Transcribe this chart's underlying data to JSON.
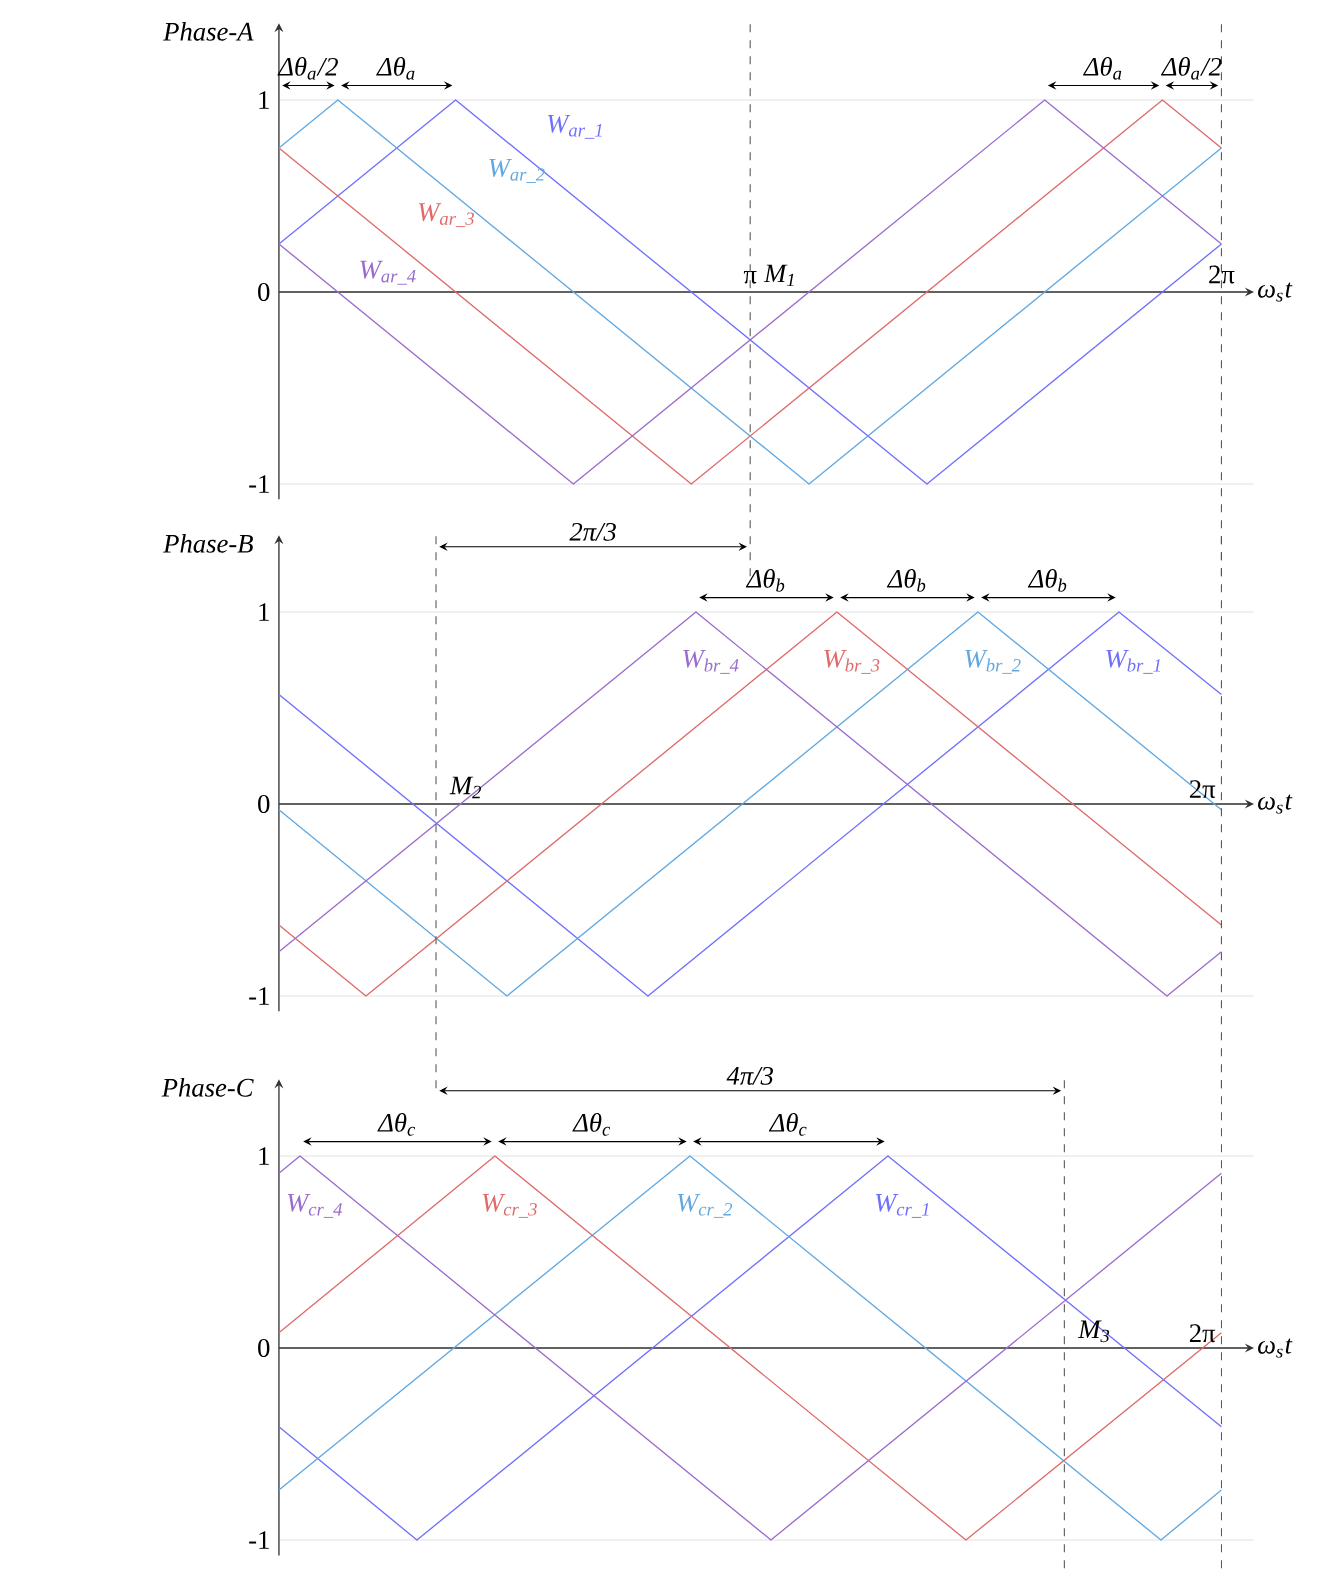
{
  "chart_data": [
    {
      "type": "line",
      "title": "Phase-A",
      "xlabel": "ω$_{s}$t",
      "xlim": [
        0,
        6.5
      ],
      "ylim": [
        -1.08,
        1.4
      ],
      "xticks": [
        {
          "value": 3.1416,
          "label": "π"
        },
        {
          "value": 6.2832,
          "label": "2π"
        }
      ],
      "yticks": [
        -1,
        0,
        1
      ],
      "grid": "y",
      "line_style": "solid",
      "series": [
        {
          "name": "W$_{ar_1}$",
          "color": "#6f6fff",
          "x": [
            0,
            1.178,
            4.32,
            6.283
          ],
          "values": [
            0.25,
            1,
            -1,
            0.25
          ]
        },
        {
          "name": "W$_{ar_2}$",
          "color": "#62a8e0",
          "x": [
            0,
            0.393,
            3.534,
            6.283
          ],
          "values": [
            0.75,
            1,
            -1,
            0.75
          ]
        },
        {
          "name": "W$_{ar_3}$",
          "color": "#e06a6a",
          "x": [
            0,
            2.749,
            5.89,
            6.283
          ],
          "values": [
            0.75,
            -1,
            1,
            0.75
          ]
        },
        {
          "name": "W$_{ar_4}$",
          "color": "#9a6ccc",
          "x": [
            0,
            1.963,
            5.105,
            6.283
          ],
          "values": [
            0.25,
            -1,
            1,
            0.25
          ]
        }
      ],
      "ref_lines": [
        {
          "axis": "x",
          "value": 3.1416,
          "label": "M$_{1}$",
          "line_style": "dashed"
        },
        {
          "axis": "x",
          "value": 6.2832,
          "line_style": "dashed"
        }
      ],
      "annotations": [
        "Δθ$_{a}$/2",
        "Δθ$_{a}$",
        "Δθ$_{a}$",
        "Δθ$_{a}$/2"
      ]
    },
    {
      "type": "line",
      "title": "Phase-B",
      "xlabel": "ω$_{s}$t",
      "xlim": [
        0,
        6.5
      ],
      "ylim": [
        -1.08,
        1.4
      ],
      "tick_labels": "y",
      "yticks": [
        -1,
        0,
        1
      ],
      "grid": "y",
      "line_style": "solid",
      "series": [
        {
          "name": "W$_{br_1}$",
          "color": "#6f6fff",
          "x": [
            0,
            2.46,
            5.6,
            6.283
          ],
          "values": [
            0.57,
            -1,
            1,
            0.57
          ]
        },
        {
          "name": "W$_{br_2}$",
          "color": "#62a8e0",
          "x": [
            0,
            1.52,
            4.66,
            6.283
          ],
          "values": [
            -0.03,
            -1,
            1,
            -0.03
          ]
        },
        {
          "name": "W$_{br_3}$",
          "color": "#e06a6a",
          "x": [
            0,
            0.58,
            3.72,
            6.283
          ],
          "values": [
            -0.63,
            -1,
            1,
            -0.63
          ]
        },
        {
          "name": "W$_{br_4}$",
          "color": "#9a6ccc",
          "x": [
            0,
            2.78,
            5.92,
            6.283
          ],
          "values": [
            -0.77,
            1,
            -1,
            -0.77
          ]
        }
      ],
      "ref_lines": [
        {
          "axis": "x",
          "value": 1.0472,
          "label": "M$_{2}$",
          "line_style": "dashed"
        },
        {
          "axis": "x",
          "value": 6.2832,
          "line_style": "dashed"
        }
      ],
      "annotations": [
        "2π/3",
        "Δθ$_{b}$",
        "Δθ$_{b}$",
        "Δθ$_{b}$",
        "2π"
      ]
    },
    {
      "type": "line",
      "title": "Phase-C",
      "xlabel": "ω$_{s}$t",
      "xlim": [
        0,
        6.5
      ],
      "ylim": [
        -1.08,
        1.4
      ],
      "tick_labels": "y",
      "yticks": [
        -1,
        0,
        1
      ],
      "grid": "y",
      "line_style": "solid",
      "series": [
        {
          "name": "W$_{cr_1}$",
          "color": "#6f6fff",
          "x": [
            0,
            0.92,
            4.06,
            6.283
          ],
          "values": [
            -0.41,
            -1,
            1,
            -0.41
          ]
        },
        {
          "name": "W$_{cr_2}$",
          "color": "#62a8e0",
          "x": [
            0,
            2.74,
            5.88,
            6.283
          ],
          "values": [
            -0.74,
            1,
            -1,
            -0.74
          ]
        },
        {
          "name": "W$_{cr_3}$",
          "color": "#e06a6a",
          "x": [
            0,
            1.44,
            4.58,
            6.283
          ],
          "values": [
            0.08,
            1,
            -1,
            0.08
          ]
        },
        {
          "name": "W$_{cr_4}$",
          "color": "#9a6ccc",
          "x": [
            0,
            0.14,
            3.28,
            6.283
          ],
          "values": [
            0.91,
            1,
            -1,
            0.91
          ]
        }
      ],
      "ref_lines": [
        {
          "axis": "x",
          "value": 5.236,
          "label": "M$_{3}$",
          "line_style": "dashed"
        },
        {
          "axis": "x",
          "value": 6.2832,
          "line_style": "dashed"
        }
      ],
      "annotations": [
        "4π/3",
        "Δθ$_{c}$",
        "Δθ$_{c}$",
        "Δθ$_{c}$",
        "2π"
      ]
    }
  ]
}
